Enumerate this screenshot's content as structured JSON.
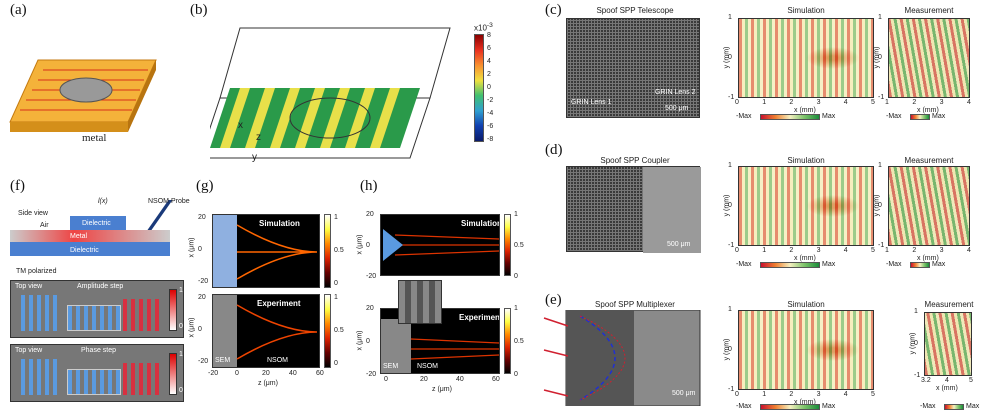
{
  "panels": {
    "a": {
      "label": "(a)",
      "metal": "metal"
    },
    "b": {
      "label": "(b)",
      "scale_exp": "x10",
      "scale_sup": "-3",
      "cbar_ticks": [
        "8",
        "6",
        "4",
        "2",
        "0",
        "-2",
        "-4",
        "-6",
        "-8"
      ],
      "axes": {
        "x": "x",
        "y": "y",
        "z": "z"
      }
    },
    "c": {
      "label": "(c)",
      "title": "Spoof SPP Telescope",
      "lens1": "GRIN Lens 1",
      "lens2": "GRIN Lens 2",
      "scalebar": "500 μm"
    },
    "d": {
      "label": "(d)",
      "title": "Spoof SPP Coupler",
      "scalebar": "500 μm"
    },
    "e": {
      "label": "(e)",
      "title": "Spoof SPP Multiplexer",
      "scalebar": "500 μm"
    },
    "f": {
      "label": "(f)",
      "side_view": "Side view",
      "lx": "l(x)",
      "nsom": "NSOM Probe",
      "air": "Air",
      "dielectric_top": "Dielectric",
      "metal": "Metal",
      "dielectric_bottom": "Dielectric",
      "tm": "TM polarized",
      "top_view": "Top view",
      "amplitude": "Amplitude step",
      "phase": "Phase step",
      "bar_hi": "1",
      "bar_lo": "0"
    },
    "g": {
      "label": "(g)",
      "sim": "Simulation",
      "exp": "Experiment",
      "sem": "SEM",
      "nsom": "NSOM",
      "xlabel": "z (μm)",
      "ylabel": "x (μm)",
      "xticks": [
        "-20",
        "0",
        "20",
        "40",
        "60"
      ],
      "yticks": [
        "20",
        "0",
        "-20"
      ],
      "cbar_ticks": [
        "1",
        "0.5",
        "0"
      ]
    },
    "h": {
      "label": "(h)",
      "sim": "Simulation",
      "exp": "Experiment",
      "sem": "SEM",
      "nsom": "NSOM",
      "xlabel": "z (μm)",
      "ylabel": "x (μm)",
      "xticks": [
        "0",
        "20",
        "40",
        "60"
      ],
      "yticks": [
        "20",
        "0",
        "-20"
      ],
      "cbar_ticks": [
        "1",
        "0.5",
        "0"
      ]
    }
  },
  "field_titles": {
    "sim": "Simulation",
    "meas": "Measurement"
  },
  "cbar_labels": {
    "min": "-Max",
    "max": "Max"
  },
  "xlabel_mm": "x (mm)",
  "ylabel_mm": "y (mm)",
  "c_sim_xticks": [
    "0",
    "1",
    "2",
    "3",
    "4",
    "5"
  ],
  "c_sim_yticks": [
    "1",
    "0",
    "-1"
  ],
  "c_meas_xticks": [
    "1",
    "2",
    "3",
    "4"
  ],
  "d_meas_xticks": [
    "1",
    "2",
    "3",
    "4"
  ],
  "e_meas_xticks": [
    "3.2",
    "4",
    "5"
  ],
  "e_meas_yticks": [
    "1",
    "0",
    "-1"
  ]
}
